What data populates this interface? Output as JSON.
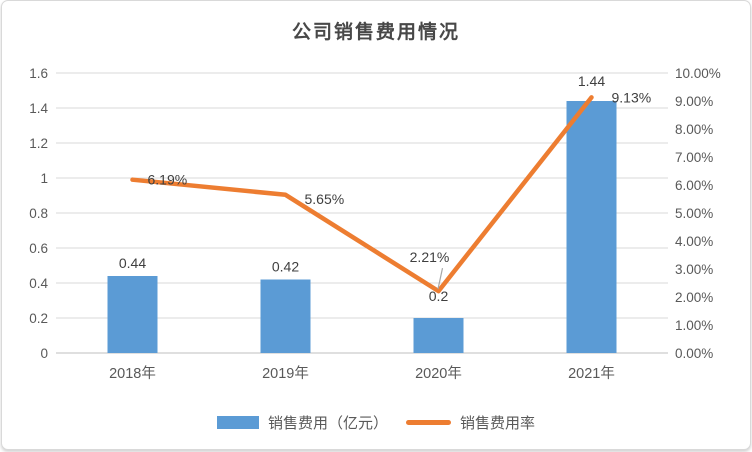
{
  "chart_data": {
    "type": "combo",
    "title": "公司销售费用情况",
    "categories": [
      "2018年",
      "2019年",
      "2020年",
      "2021年"
    ],
    "series": [
      {
        "name": "销售费用（亿元）",
        "type": "bar",
        "axis": "left",
        "color": "#5B9BD5",
        "values": [
          0.44,
          0.42,
          0.2,
          1.44
        ],
        "labels": [
          "0.44",
          "0.42",
          "0.2",
          "1.44"
        ]
      },
      {
        "name": "销售费用率",
        "type": "line",
        "axis": "right",
        "color": "#ED7D31",
        "values": [
          6.19,
          5.65,
          2.21,
          9.13
        ],
        "labels": [
          "6.19%",
          "5.65%",
          "2.21%",
          "9.13%"
        ]
      }
    ],
    "left_axis": {
      "min": 0,
      "max": 1.6,
      "step": 0.2,
      "ticks": [
        "0",
        "0.2",
        "0.4",
        "0.6",
        "0.8",
        "1",
        "1.2",
        "1.4",
        "1.6"
      ]
    },
    "right_axis": {
      "min": 0,
      "max": 10,
      "step": 1,
      "ticks": [
        "0.00%",
        "1.00%",
        "2.00%",
        "3.00%",
        "4.00%",
        "5.00%",
        "6.00%",
        "7.00%",
        "8.00%",
        "9.00%",
        "10.00%"
      ]
    },
    "grid": true,
    "legend_position": "bottom",
    "colors": {
      "gridline": "#d9d9d9",
      "axis_line": "#bfbfbf",
      "tick_text": "#595959",
      "data_label_text": "#3f3f3f",
      "leader_line": "#a6a6a6"
    }
  }
}
